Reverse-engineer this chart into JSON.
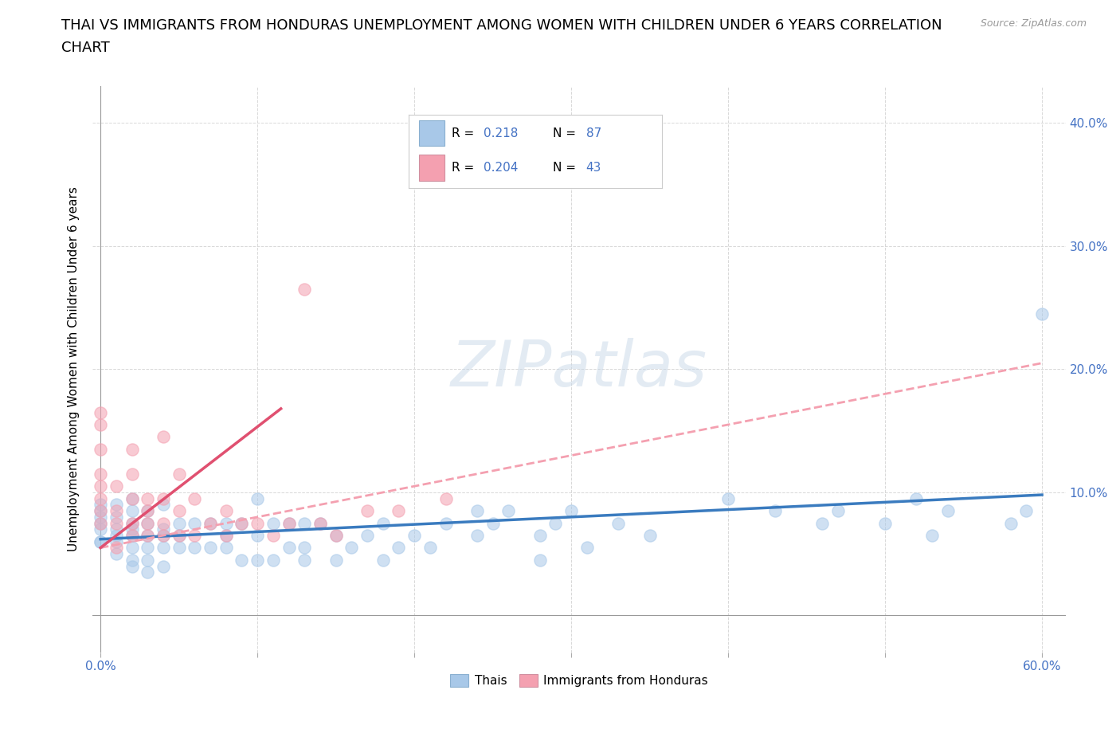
{
  "title_line1": "THAI VS IMMIGRANTS FROM HONDURAS UNEMPLOYMENT AMONG WOMEN WITH CHILDREN UNDER 6 YEARS CORRELATION",
  "title_line2": "CHART",
  "source_text": "Source: ZipAtlas.com",
  "ylabel": "Unemployment Among Women with Children Under 6 years",
  "xlim": [
    -0.005,
    0.615
  ],
  "ylim": [
    -0.03,
    0.43
  ],
  "xticks": [
    0.0,
    0.1,
    0.2,
    0.3,
    0.4,
    0.5,
    0.6
  ],
  "xticklabels": [
    "0.0%",
    "",
    "",
    "",
    "",
    "",
    "60.0%"
  ],
  "yticks": [
    0.0,
    0.1,
    0.2,
    0.3,
    0.4
  ],
  "yticklabels_right": [
    "",
    "10.0%",
    "20.0%",
    "30.0%",
    "40.0%"
  ],
  "thai_color": "#a8c8e8",
  "honduras_color": "#f4a0b0",
  "trendline_thai_color": "#3a7bbf",
  "trendline_honduras_dashed_color": "#f4a0b0",
  "trendline_honduras_solid_color": "#e05070",
  "background_color": "#ffffff",
  "thai_scatter_x": [
    0.0,
    0.0,
    0.0,
    0.0,
    0.0,
    0.0,
    0.0,
    0.01,
    0.01,
    0.01,
    0.01,
    0.01,
    0.01,
    0.02,
    0.02,
    0.02,
    0.02,
    0.02,
    0.02,
    0.02,
    0.02,
    0.03,
    0.03,
    0.03,
    0.03,
    0.03,
    0.03,
    0.04,
    0.04,
    0.04,
    0.04,
    0.04,
    0.05,
    0.05,
    0.05,
    0.06,
    0.06,
    0.07,
    0.07,
    0.08,
    0.08,
    0.08,
    0.09,
    0.09,
    0.1,
    0.1,
    0.1,
    0.11,
    0.11,
    0.12,
    0.12,
    0.13,
    0.13,
    0.13,
    0.14,
    0.15,
    0.15,
    0.16,
    0.17,
    0.18,
    0.18,
    0.19,
    0.2,
    0.21,
    0.22,
    0.24,
    0.24,
    0.25,
    0.26,
    0.28,
    0.28,
    0.29,
    0.3,
    0.31,
    0.33,
    0.35,
    0.4,
    0.43,
    0.46,
    0.47,
    0.5,
    0.52,
    0.53,
    0.54,
    0.58,
    0.59,
    0.6
  ],
  "thai_scatter_y": [
    0.06,
    0.06,
    0.07,
    0.075,
    0.08,
    0.085,
    0.09,
    0.05,
    0.06,
    0.065,
    0.07,
    0.08,
    0.09,
    0.04,
    0.045,
    0.055,
    0.065,
    0.07,
    0.075,
    0.085,
    0.095,
    0.035,
    0.045,
    0.055,
    0.065,
    0.075,
    0.085,
    0.04,
    0.055,
    0.065,
    0.07,
    0.09,
    0.055,
    0.065,
    0.075,
    0.055,
    0.075,
    0.055,
    0.075,
    0.055,
    0.065,
    0.075,
    0.045,
    0.075,
    0.045,
    0.065,
    0.095,
    0.045,
    0.075,
    0.055,
    0.075,
    0.045,
    0.055,
    0.075,
    0.075,
    0.045,
    0.065,
    0.055,
    0.065,
    0.045,
    0.075,
    0.055,
    0.065,
    0.055,
    0.075,
    0.065,
    0.085,
    0.075,
    0.085,
    0.045,
    0.065,
    0.075,
    0.085,
    0.055,
    0.075,
    0.065,
    0.095,
    0.085,
    0.075,
    0.085,
    0.075,
    0.095,
    0.065,
    0.085,
    0.075,
    0.085,
    0.245
  ],
  "honduras_scatter_x": [
    0.0,
    0.0,
    0.0,
    0.0,
    0.0,
    0.0,
    0.0,
    0.0,
    0.01,
    0.01,
    0.01,
    0.01,
    0.02,
    0.02,
    0.02,
    0.02,
    0.02,
    0.03,
    0.03,
    0.03,
    0.03,
    0.04,
    0.04,
    0.04,
    0.04,
    0.05,
    0.05,
    0.05,
    0.06,
    0.06,
    0.07,
    0.08,
    0.08,
    0.09,
    0.1,
    0.11,
    0.12,
    0.13,
    0.14,
    0.15,
    0.17,
    0.19,
    0.22
  ],
  "honduras_scatter_y": [
    0.075,
    0.085,
    0.095,
    0.105,
    0.115,
    0.135,
    0.155,
    0.165,
    0.055,
    0.075,
    0.085,
    0.105,
    0.065,
    0.075,
    0.095,
    0.115,
    0.135,
    0.065,
    0.075,
    0.085,
    0.095,
    0.065,
    0.075,
    0.095,
    0.145,
    0.065,
    0.085,
    0.115,
    0.065,
    0.095,
    0.075,
    0.065,
    0.085,
    0.075,
    0.075,
    0.065,
    0.075,
    0.265,
    0.075,
    0.065,
    0.085,
    0.085,
    0.095
  ],
  "trendline_thai_x0": 0.0,
  "trendline_thai_x1": 0.6,
  "trendline_thai_y0": 0.062,
  "trendline_thai_y1": 0.098,
  "trendline_honduras_dashed_x0": 0.0,
  "trendline_honduras_dashed_x1": 0.6,
  "trendline_honduras_dashed_y0": 0.055,
  "trendline_honduras_dashed_y1": 0.205,
  "trendline_honduras_solid_x0": 0.0,
  "trendline_honduras_solid_x1": 0.115,
  "trendline_honduras_solid_y0": 0.055,
  "trendline_honduras_solid_y1": 0.168,
  "grid_color": "#d8d8d8",
  "tick_fontsize": 11,
  "axis_label_fontsize": 11,
  "title_fontsize": 13,
  "scatter_size": 120,
  "scatter_alpha": 0.55,
  "watermark_text": "ZIPatlas"
}
